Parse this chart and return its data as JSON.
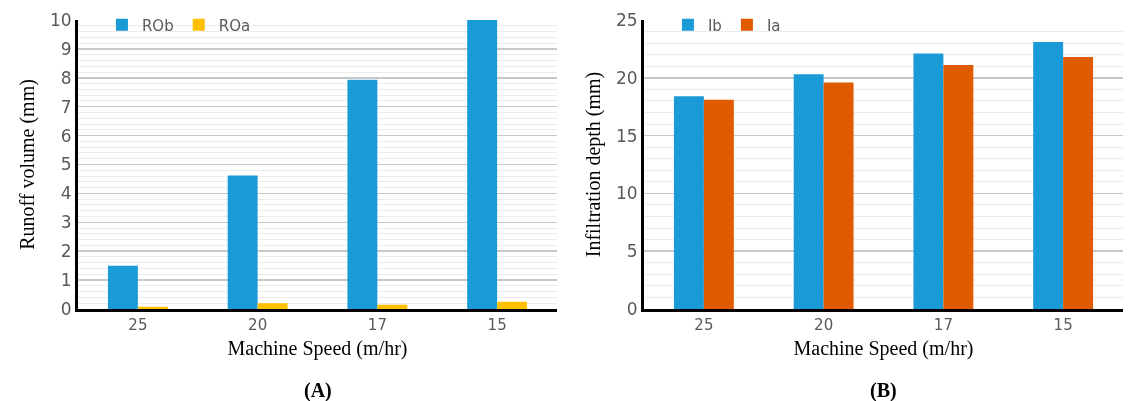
{
  "chart_data": [
    {
      "type": "bar",
      "categories": [
        "25",
        "20",
        "17",
        "15"
      ],
      "xlabel": "Machine Speed (m/hr)",
      "ylabel": "Runoff volume (mm)",
      "series": [
        {
          "name": "ROb",
          "color": "#1a9bd7",
          "values": [
            1.5,
            4.62,
            7.93,
            10.0
          ]
        },
        {
          "name": "ROa",
          "color": "#ffc000",
          "values": [
            0.08,
            0.2,
            0.15,
            0.25
          ]
        }
      ],
      "ylim": [
        0,
        10
      ],
      "yticks": [
        0,
        1,
        2,
        3,
        4,
        5,
        6,
        7,
        8,
        9,
        10
      ],
      "grid": "y",
      "legend": "top left",
      "annotations": [
        "(A)"
      ]
    },
    {
      "type": "bar",
      "categories": [
        "25",
        "20",
        "17",
        "15"
      ],
      "xlabel": "Machine Speed (m/hr)",
      "ylabel": "Infiltration depth (mm)",
      "series": [
        {
          "name": "Ib",
          "color": "#1a9bd7",
          "values": [
            18.4,
            20.3,
            22.1,
            23.1
          ]
        },
        {
          "name": "Ia",
          "color": "#e05a00",
          "values": [
            18.1,
            19.6,
            21.1,
            21.8
          ]
        }
      ],
      "ylim": [
        0,
        25
      ],
      "yticks": [
        0,
        5,
        10,
        15,
        20,
        25
      ],
      "grid": "y",
      "legend": "top left",
      "annotations": [
        "(B)"
      ]
    }
  ]
}
